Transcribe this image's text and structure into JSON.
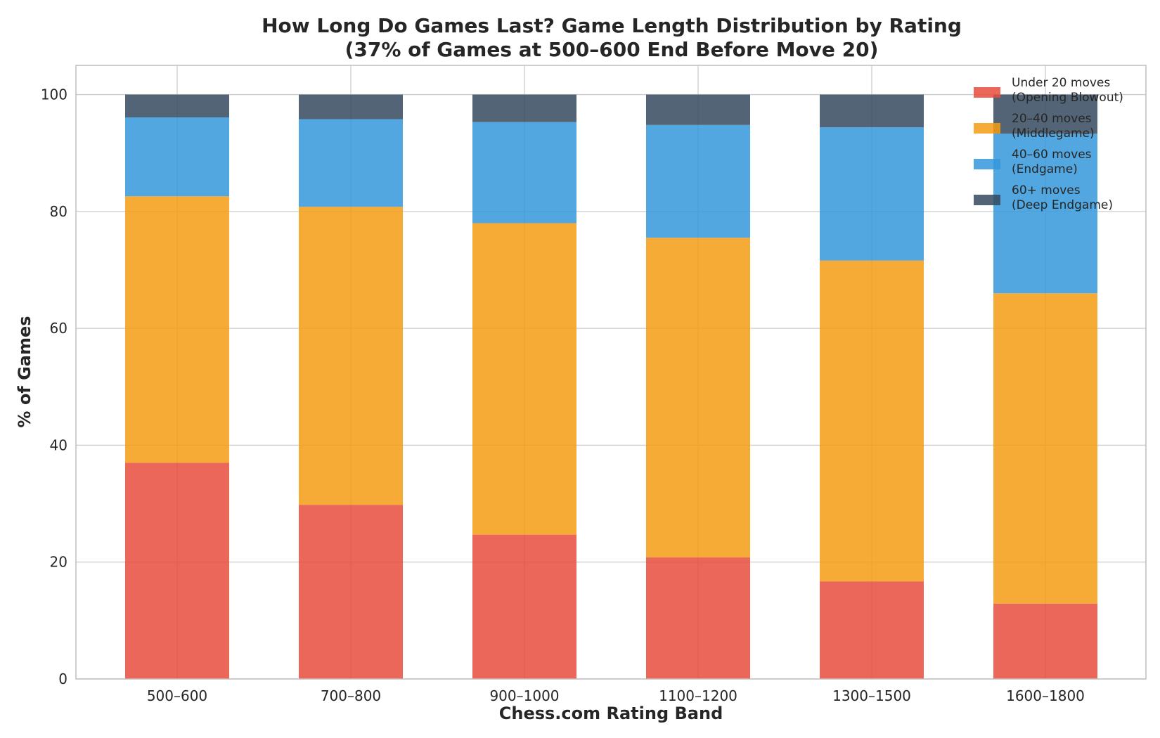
{
  "chart_data": {
    "type": "bar",
    "stacked": true,
    "title_line1": "How Long Do Games Last? Game Length Distribution by Rating",
    "title_line2": "(37% of Games at 500–600 End Before Move 20)",
    "xlabel": "Chess.com Rating Band",
    "ylabel": "% of Games",
    "ylim": [
      0,
      105
    ],
    "yticks": [
      0,
      20,
      40,
      60,
      80,
      100
    ],
    "grid": true,
    "legend_position": "top-right",
    "categories": [
      "500–600",
      "700–800",
      "900–1000",
      "1100–1200",
      "1300–1500",
      "1600–1800"
    ],
    "series": [
      {
        "name_line1": "Under 20 moves",
        "name_line2": "(Opening Blowout)",
        "color": "#e74c3c",
        "values": [
          37.0,
          29.8,
          24.7,
          20.8,
          16.7,
          12.9
        ]
      },
      {
        "name_line1": "20–40 moves",
        "name_line2": "(Middlegame)",
        "color": "#f39c12",
        "values": [
          45.6,
          51.0,
          53.3,
          54.7,
          54.9,
          53.1
        ]
      },
      {
        "name_line1": "40–60 moves",
        "name_line2": "(Endgame)",
        "color": "#3498db",
        "values": [
          13.5,
          15.0,
          17.3,
          19.3,
          22.8,
          27.3
        ]
      },
      {
        "name_line1": "60+ moves",
        "name_line2": "(Deep Endgame)",
        "color": "#34495e",
        "values": [
          3.9,
          4.2,
          4.7,
          5.2,
          5.6,
          6.7
        ]
      }
    ]
  }
}
